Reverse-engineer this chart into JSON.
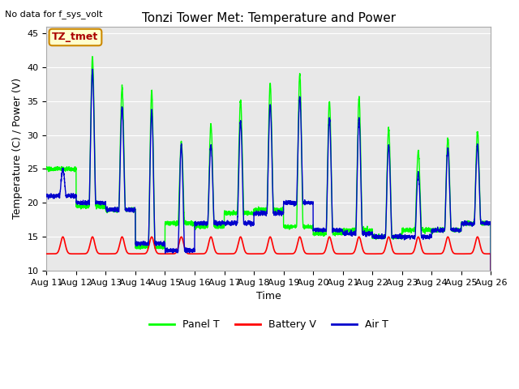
{
  "title": "Tonzi Tower Met: Temperature and Power",
  "ylabel": "Temperature (C) / Power (V)",
  "xlabel": "Time",
  "top_left_text": "No data for f_sys_volt",
  "annotation_box": "TZ_tmet",
  "ylim": [
    10,
    46
  ],
  "yticks": [
    10,
    15,
    20,
    25,
    30,
    35,
    40,
    45
  ],
  "x_labels": [
    "Aug 11",
    "Aug 12",
    "Aug 13",
    "Aug 14",
    "Aug 15",
    "Aug 16",
    "Aug 17",
    "Aug 18",
    "Aug 19",
    "Aug 20",
    "Aug 21",
    "Aug 22",
    "Aug 23",
    "Aug 24",
    "Aug 25",
    "Aug 26"
  ],
  "bg_color": "#e8e8e8",
  "panel_color": "#00ff00",
  "battery_color": "#ff0000",
  "air_color": "#0000cc",
  "legend_labels": [
    "Panel T",
    "Battery V",
    "Air T"
  ],
  "title_fontsize": 11,
  "label_fontsize": 9,
  "tick_fontsize": 8,
  "panel_peaks": [
    25,
    41.5,
    37,
    36.5,
    29,
    31.5,
    35,
    37.5,
    39,
    35,
    35.5,
    31,
    27.5,
    29.5,
    30.5
  ],
  "panel_troughs": [
    25,
    19.5,
    19,
    13.5,
    17,
    16.5,
    18.5,
    19,
    16.5,
    15.5,
    16,
    15,
    16,
    16,
    17
  ],
  "air_peaks": [
    25,
    39.5,
    34,
    33.5,
    28.5,
    28.5,
    32,
    34.5,
    35.5,
    32.5,
    32.5,
    28.5,
    24.5,
    28,
    28.5
  ],
  "air_troughs": [
    21,
    20,
    19,
    14,
    13,
    17,
    17,
    18.5,
    20,
    16,
    15.5,
    15,
    15,
    16,
    17
  ],
  "battery_base": 12.5,
  "battery_peak": 15.0
}
